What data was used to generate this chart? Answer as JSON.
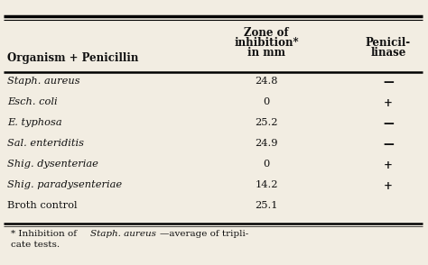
{
  "col1_header": "Organism + Penicillin",
  "col2_header": "Zone of\ninhibition*\nin mm",
  "col3_header": "Penicil-\nlinase",
  "rows": [
    [
      "Staph. aureus",
      "24.8",
      "—"
    ],
    [
      "Esch. coli",
      "0",
      "+"
    ],
    [
      "E. typhosa",
      "25.2",
      "—"
    ],
    [
      "Sal. enteriditis",
      "24.9",
      "—"
    ],
    [
      "Shig. dysenteriae",
      "0",
      "+"
    ],
    [
      "Shig. paradysenteriae",
      "14.2",
      "+"
    ],
    [
      "Broth control",
      "25.1",
      ""
    ]
  ],
  "row_italic": [
    true,
    true,
    true,
    true,
    true,
    true,
    false
  ],
  "bg_color": "#f2ede2",
  "text_color": "#111111",
  "footnote_plain1": "* Inhibition of ",
  "footnote_italic": "Staph. aureus",
  "footnote_plain2": "—average of tripli-",
  "footnote_line2": "cate tests."
}
